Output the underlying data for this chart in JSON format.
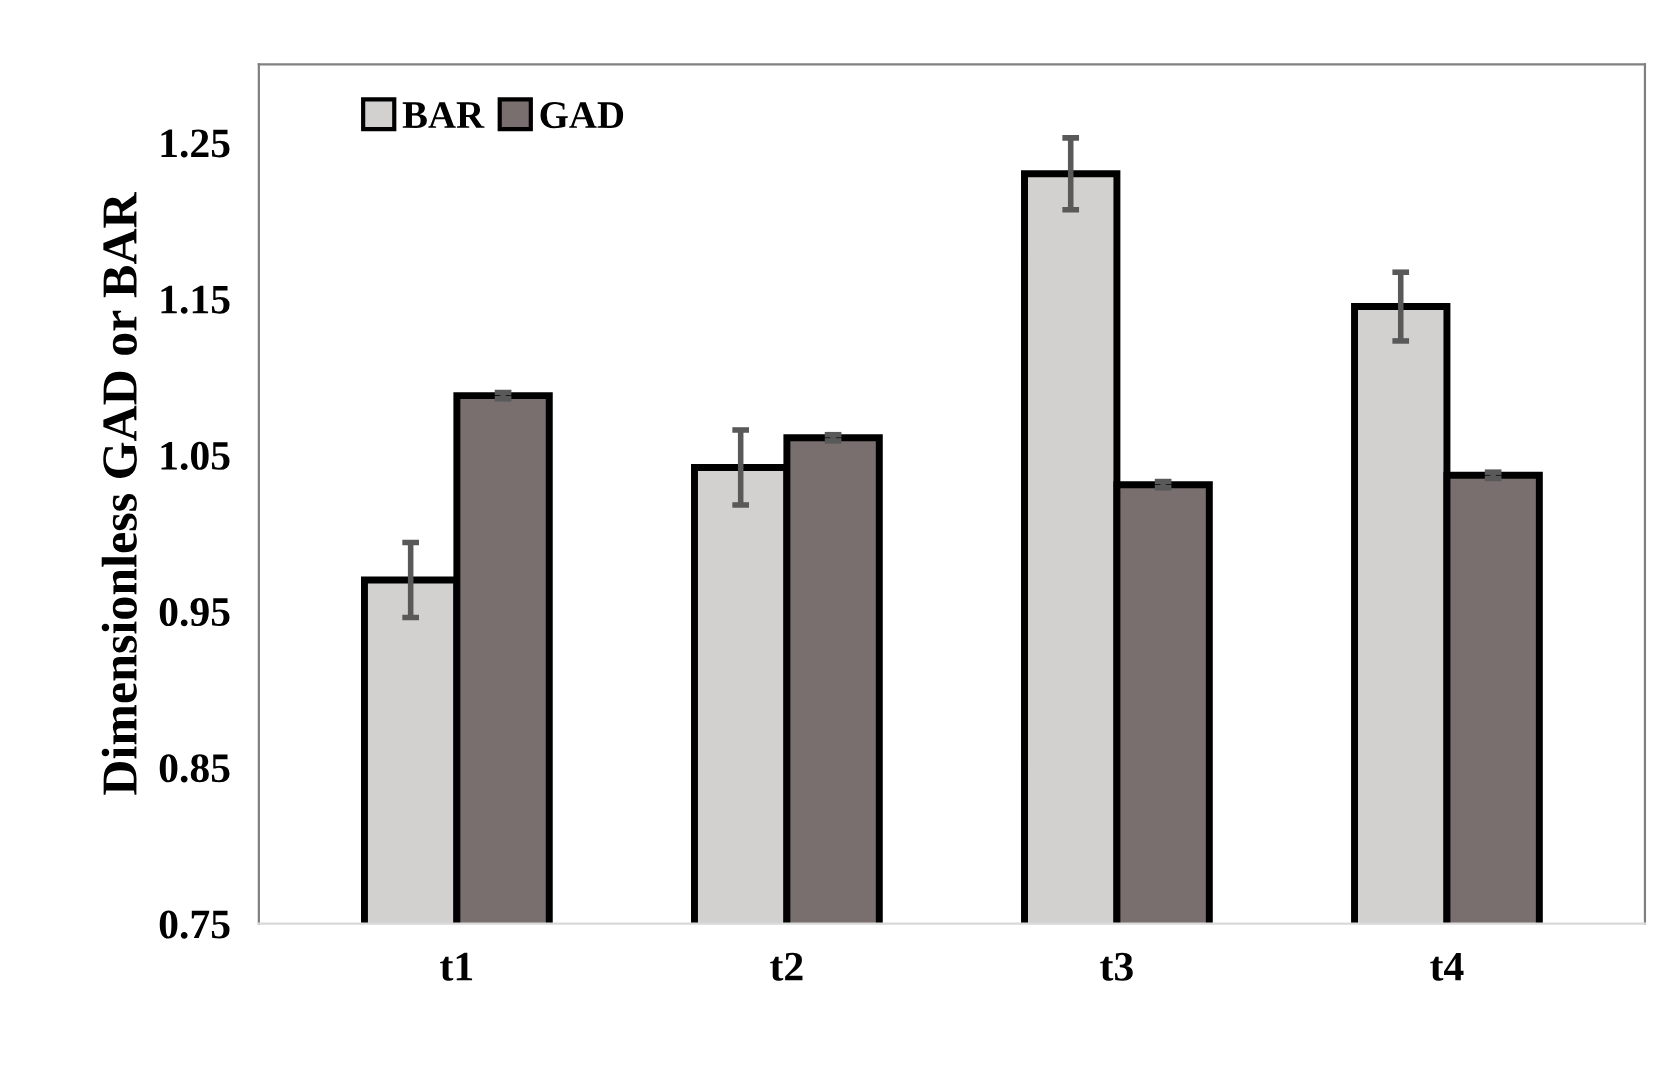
{
  "chart_data": {
    "type": "bar",
    "ylabel": "Dimensionless GAD or BAR",
    "categories": [
      "t1",
      "t2",
      "t3",
      "t4"
    ],
    "series": [
      {
        "name": "BAR",
        "color": "#d3d0d0",
        "values": [
          0.97,
          1.042,
          1.23,
          1.145
        ],
        "errors": [
          0.024,
          0.024,
          0.023,
          0.022
        ]
      },
      {
        "name": "GAD",
        "color": "#786f6e",
        "values": [
          1.088,
          1.061,
          1.031,
          1.037
        ],
        "errors": [
          0.002,
          0.002,
          0.002,
          0.002
        ]
      }
    ],
    "ylim": [
      0.75,
      1.3
    ],
    "yticks": [
      0.75,
      0.85,
      0.95,
      1.05,
      1.15,
      1.25
    ],
    "grid": false,
    "legend": "top left"
  }
}
